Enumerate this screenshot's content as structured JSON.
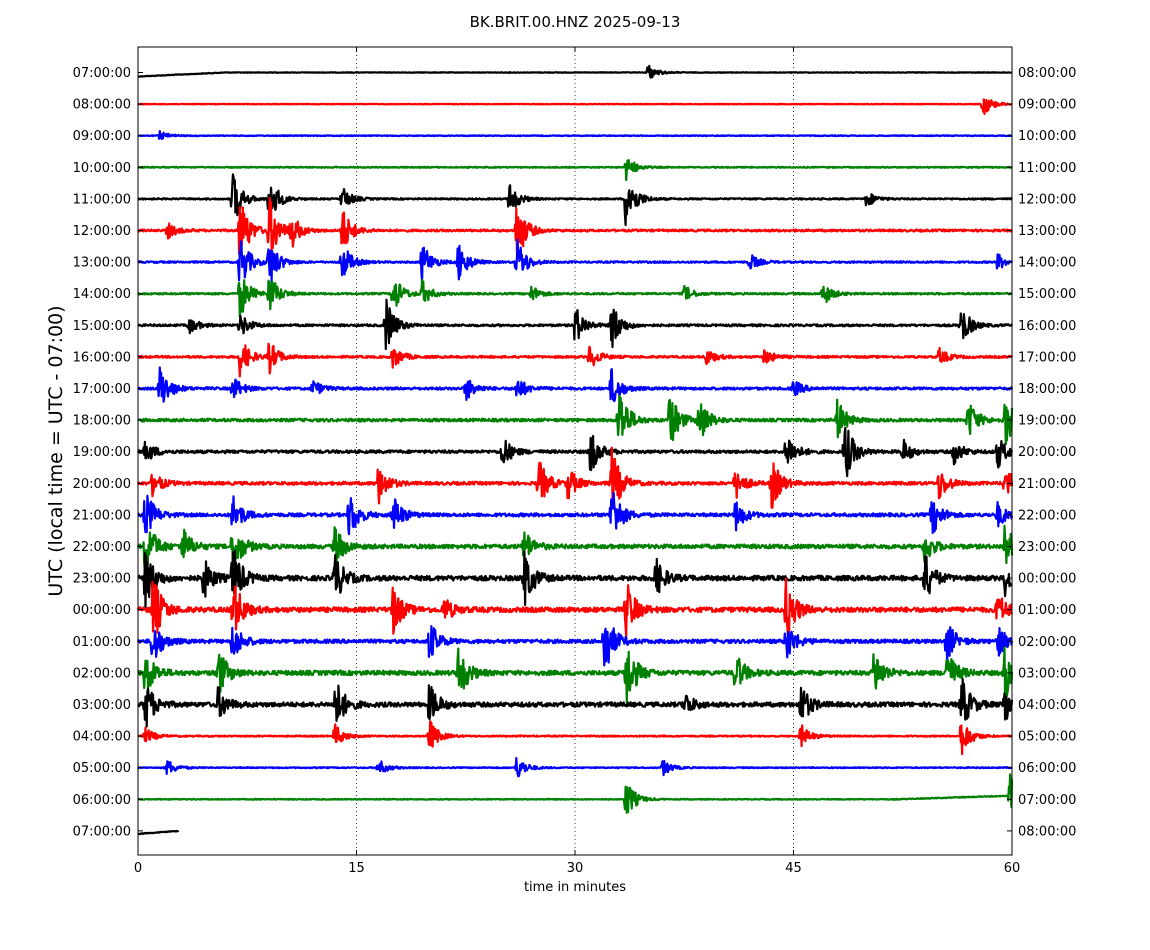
{
  "chart_data": {
    "type": "line",
    "title": "BK.BRIT.00.HNZ 2025-09-13",
    "xlabel": "time in minutes",
    "ylabel": "UTC (local time = UTC - 07:00)",
    "xlim": [
      0,
      60
    ],
    "x_ticks": [
      0,
      15,
      30,
      45,
      60
    ],
    "x_tick_labels": [
      "0",
      "15",
      "30",
      "45",
      "60"
    ],
    "grid": "vertical dotted at 15, 30, 45",
    "line_colors": [
      "#000000",
      "#ff0000",
      "#0000ff",
      "#008000"
    ],
    "left_labels": [
      "07:00:00",
      "08:00:00",
      "09:00:00",
      "10:00:00",
      "11:00:00",
      "12:00:00",
      "13:00:00",
      "14:00:00",
      "15:00:00",
      "16:00:00",
      "17:00:00",
      "18:00:00",
      "19:00:00",
      "20:00:00",
      "21:00:00",
      "22:00:00",
      "23:00:00",
      "00:00:00",
      "01:00:00",
      "02:00:00",
      "03:00:00",
      "04:00:00",
      "05:00:00",
      "06:00:00",
      "07:00:00"
    ],
    "right_labels": [
      "08:00:00",
      "09:00:00",
      "10:00:00",
      "11:00:00",
      "12:00:00",
      "13:00:00",
      "14:00:00",
      "15:00:00",
      "16:00:00",
      "17:00:00",
      "18:00:00",
      "19:00:00",
      "20:00:00",
      "21:00:00",
      "22:00:00",
      "23:00:00",
      "00:00:00",
      "01:00:00",
      "02:00:00",
      "03:00:00",
      "04:00:00",
      "05:00:00",
      "06:00:00",
      "07:00:00",
      "08:00:00"
    ],
    "traces": [
      {
        "noise": 0.3,
        "events": [
          [
            35,
            2.0
          ]
        ]
      },
      {
        "noise": 0.3,
        "events": [
          [
            58,
            3.0
          ]
        ]
      },
      {
        "noise": 0.4,
        "events": [
          [
            1.5,
            1.0
          ]
        ]
      },
      {
        "noise": 0.5,
        "events": [
          [
            33.5,
            3.0
          ]
        ]
      },
      {
        "noise": 0.7,
        "events": [
          [
            6.5,
            7.0
          ],
          [
            9,
            6.0
          ],
          [
            14,
            3.0
          ],
          [
            25.5,
            4.0
          ],
          [
            33.5,
            8.0
          ],
          [
            50,
            2.0
          ]
        ]
      },
      {
        "noise": 1.0,
        "events": [
          [
            7,
            9.0
          ],
          [
            9,
            8.0
          ],
          [
            10.5,
            4.0
          ],
          [
            14,
            6.0
          ],
          [
            26,
            8.0
          ],
          [
            2,
            2.0
          ]
        ]
      },
      {
        "noise": 0.8,
        "events": [
          [
            7,
            7.0
          ],
          [
            9,
            6.0
          ],
          [
            14,
            5.0
          ],
          [
            19.5,
            5.0
          ],
          [
            22,
            5.0
          ],
          [
            26,
            6.0
          ],
          [
            42,
            2.0
          ],
          [
            59,
            2.0
          ]
        ]
      },
      {
        "noise": 0.8,
        "events": [
          [
            7,
            6.0
          ],
          [
            9,
            5.0
          ],
          [
            17.5,
            5.0
          ],
          [
            19.5,
            3.0
          ],
          [
            27,
            2.0
          ],
          [
            37.5,
            2.0
          ],
          [
            47,
            3.0
          ]
        ]
      },
      {
        "noise": 1.0,
        "events": [
          [
            3.5,
            2.0
          ],
          [
            17,
            7.0
          ],
          [
            30,
            5.0
          ],
          [
            32.5,
            6.0
          ],
          [
            56.5,
            5.0
          ],
          [
            7,
            3.0
          ]
        ]
      },
      {
        "noise": 1.0,
        "events": [
          [
            7,
            5.0
          ],
          [
            9,
            4.0
          ],
          [
            17.5,
            3.0
          ],
          [
            31,
            3.0
          ],
          [
            39,
            2.0
          ],
          [
            43,
            2.0
          ],
          [
            55,
            2.0
          ]
        ]
      },
      {
        "noise": 1.2,
        "events": [
          [
            1.5,
            6.0
          ],
          [
            6.5,
            3.0
          ],
          [
            12,
            2.0
          ],
          [
            22.5,
            3.0
          ],
          [
            26,
            3.0
          ],
          [
            32.5,
            5.0
          ],
          [
            45,
            2.0
          ]
        ]
      },
      {
        "noise": 1.4,
        "events": [
          [
            33,
            9.0
          ],
          [
            36.5,
            7.0
          ],
          [
            38.5,
            6.0
          ],
          [
            48,
            5.0
          ],
          [
            57,
            5.0
          ],
          [
            59.5,
            7.0
          ]
        ]
      },
      {
        "noise": 1.4,
        "events": [
          [
            0.5,
            3.0
          ],
          [
            25,
            4.0
          ],
          [
            31,
            6.0
          ],
          [
            44.5,
            5.0
          ],
          [
            48.5,
            8.0
          ],
          [
            52.5,
            3.0
          ],
          [
            56,
            3.0
          ],
          [
            59,
            4.0
          ]
        ]
      },
      {
        "noise": 1.5,
        "events": [
          [
            1,
            3.0
          ],
          [
            16.5,
            5.0
          ],
          [
            27.5,
            6.0
          ],
          [
            29.5,
            4.0
          ],
          [
            32.5,
            9.0
          ],
          [
            41,
            4.0
          ],
          [
            43.5,
            6.0
          ],
          [
            55,
            4.0
          ],
          [
            59.5,
            4.0
          ]
        ]
      },
      {
        "noise": 1.6,
        "events": [
          [
            0.5,
            6.0
          ],
          [
            6.5,
            5.0
          ],
          [
            14.5,
            6.0
          ],
          [
            17.5,
            5.0
          ],
          [
            32.5,
            8.0
          ],
          [
            41,
            4.0
          ],
          [
            54.5,
            5.0
          ],
          [
            59,
            3.0
          ]
        ]
      },
      {
        "noise": 2.0,
        "events": [
          [
            0.5,
            8.0
          ],
          [
            3,
            5.0
          ],
          [
            6.5,
            7.0
          ],
          [
            13.5,
            5.0
          ],
          [
            26.5,
            4.0
          ],
          [
            54,
            4.0
          ],
          [
            59.5,
            6.0
          ]
        ]
      },
      {
        "noise": 2.4,
        "events": [
          [
            0.5,
            7.0
          ],
          [
            4.5,
            5.0
          ],
          [
            6.5,
            8.0
          ],
          [
            13.5,
            6.0
          ],
          [
            26.5,
            7.0
          ],
          [
            35.5,
            5.0
          ],
          [
            54,
            6.0
          ],
          [
            59.5,
            4.0
          ]
        ]
      },
      {
        "noise": 2.4,
        "events": [
          [
            1,
            9.0
          ],
          [
            6.5,
            8.0
          ],
          [
            17.5,
            6.0
          ],
          [
            21,
            3.0
          ],
          [
            33.5,
            7.0
          ],
          [
            44.5,
            8.0
          ],
          [
            59,
            4.0
          ]
        ]
      },
      {
        "noise": 1.8,
        "events": [
          [
            1,
            6.0
          ],
          [
            6.5,
            5.0
          ],
          [
            20,
            5.0
          ],
          [
            32,
            9.0
          ],
          [
            44.5,
            5.0
          ],
          [
            55.5,
            5.0
          ],
          [
            59,
            4.0
          ]
        ]
      },
      {
        "noise": 2.2,
        "events": [
          [
            0.5,
            6.0
          ],
          [
            5.5,
            6.0
          ],
          [
            22,
            7.0
          ],
          [
            33.5,
            9.0
          ],
          [
            41,
            5.0
          ],
          [
            50.5,
            6.0
          ],
          [
            55.5,
            6.0
          ],
          [
            59.5,
            7.0
          ]
        ]
      },
      {
        "noise": 2.2,
        "events": [
          [
            0.5,
            6.0
          ],
          [
            5.5,
            4.0
          ],
          [
            13.5,
            7.0
          ],
          [
            20,
            5.0
          ],
          [
            37.5,
            3.0
          ],
          [
            45.5,
            5.0
          ],
          [
            56.5,
            7.0
          ],
          [
            59.5,
            5.0
          ]
        ]
      },
      {
        "noise": 0.6,
        "events": [
          [
            0.5,
            2.0
          ],
          [
            13.5,
            3.0
          ],
          [
            20,
            4.0
          ],
          [
            45.5,
            3.0
          ],
          [
            56.5,
            5.0
          ]
        ]
      },
      {
        "noise": 0.5,
        "events": [
          [
            16.5,
            2.0
          ],
          [
            26,
            3.0
          ],
          [
            36,
            2.0
          ],
          [
            2,
            2.0
          ]
        ]
      },
      {
        "noise": 0.4,
        "events": [
          [
            33.5,
            5.0
          ],
          [
            59.8,
            6.0
          ]
        ]
      },
      {
        "noise": 0.4,
        "events": []
      }
    ]
  }
}
